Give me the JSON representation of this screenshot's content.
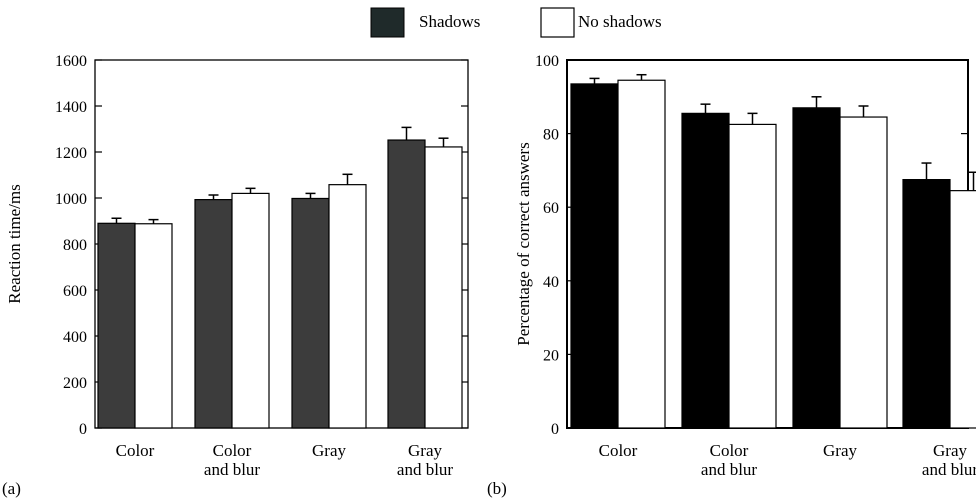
{
  "legend": {
    "items": [
      {
        "label": "Shadows",
        "color": "#1f2a2a"
      },
      {
        "label": "No shadows",
        "color": "#ffffff"
      }
    ],
    "placement": "top-center"
  },
  "chart_data": [
    {
      "type": "bar",
      "panel_label": "(a)",
      "categories": [
        [
          "Color"
        ],
        [
          "Color",
          "and blur"
        ],
        [
          "Gray"
        ],
        [
          "Gray",
          "and blur"
        ]
      ],
      "series": [
        {
          "name": "Shadows",
          "values": [
            890,
            993,
            998,
            1252
          ],
          "errors": [
            22,
            20,
            22,
            55
          ],
          "color": "#3c3c3c"
        },
        {
          "name": "No shadows",
          "values": [
            888,
            1020,
            1058,
            1222
          ],
          "errors": [
            18,
            22,
            45,
            38
          ],
          "color": "#ffffff"
        }
      ],
      "ylabel": "Reaction time/ms",
      "ylim": [
        0,
        1600
      ],
      "yticks": [
        0,
        200,
        400,
        600,
        800,
        1000,
        1200,
        1400,
        1600
      ],
      "grid": false
    },
    {
      "type": "bar",
      "panel_label": "(b)",
      "categories": [
        [
          "Color"
        ],
        [
          "Color",
          "and blur"
        ],
        [
          "Gray"
        ],
        [
          "Gray",
          "and blur"
        ]
      ],
      "series": [
        {
          "name": "Shadows",
          "values": [
            93.5,
            85.5,
            87,
            67.5
          ],
          "errors": [
            1.5,
            2.5,
            3,
            4.5
          ],
          "color": "#000000"
        },
        {
          "name": "No shadows",
          "values": [
            94.5,
            82.5,
            84.5,
            64.5
          ],
          "errors": [
            1.5,
            3,
            3,
            5
          ],
          "color": "#ffffff"
        }
      ],
      "ylabel": "Percentage of correct answers",
      "ylim": [
        0,
        100
      ],
      "yticks": [
        0,
        20,
        40,
        60,
        80,
        100
      ],
      "grid": false
    }
  ]
}
